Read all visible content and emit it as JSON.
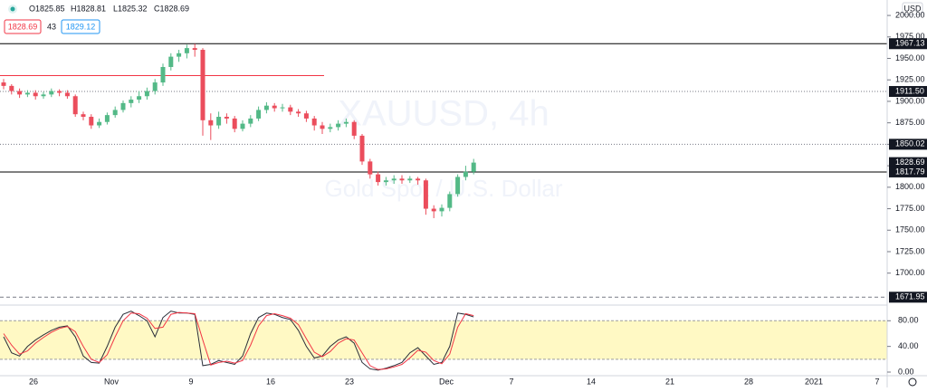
{
  "header": {
    "ohlc": [
      "O1825.85",
      "H1828.81",
      "L1825.32",
      "C1828.69"
    ],
    "sell": "1828.69",
    "spread": "43",
    "buy": "1829.12",
    "currency": "USD",
    "watermark": "XAUUSD, 4h",
    "watermark_sub": "Gold Spot / U.S. Dollar"
  },
  "chart_data": [
    {
      "type": "candlestick",
      "up_color": "#53b987",
      "down_color": "#eb4d5c",
      "open": [
        1922,
        1918,
        1912,
        1908,
        1910,
        1906,
        1908,
        1912,
        1910,
        1906,
        1885,
        1882,
        1872,
        1876,
        1884,
        1890,
        1898,
        1902,
        1906,
        1912,
        1922,
        1940,
        1952,
        1956,
        1962,
        1960,
        1878,
        1872,
        1882,
        1880,
        1868,
        1874,
        1880,
        1890,
        1895,
        1892,
        1893,
        1888,
        1886,
        1880,
        1872,
        1868,
        1870,
        1874,
        1876,
        1860,
        1830,
        1815,
        1806,
        1808,
        1810,
        1808,
        1810,
        1808,
        1775,
        1772,
        1776,
        1792,
        1812,
        1818
      ],
      "high": [
        1926,
        1920,
        1915,
        1913,
        1913,
        1911,
        1915,
        1914,
        1913,
        1908,
        1888,
        1885,
        1880,
        1887,
        1894,
        1901,
        1906,
        1912,
        1916,
        1926,
        1944,
        1956,
        1960,
        1966,
        1967,
        1962,
        1886,
        1888,
        1886,
        1883,
        1878,
        1884,
        1894,
        1899,
        1898,
        1897,
        1896,
        1891,
        1889,
        1883,
        1876,
        1874,
        1878,
        1880,
        1878,
        1862,
        1833,
        1818,
        1812,
        1814,
        1814,
        1813,
        1812,
        1810,
        1779,
        1780,
        1795,
        1815,
        1825,
        1833
      ],
      "low": [
        1914,
        1908,
        1904,
        1905,
        1902,
        1903,
        1905,
        1906,
        1903,
        1882,
        1878,
        1868,
        1869,
        1873,
        1881,
        1887,
        1893,
        1898,
        1902,
        1908,
        1918,
        1936,
        1946,
        1950,
        1952,
        1860,
        1855,
        1868,
        1874,
        1864,
        1865,
        1870,
        1877,
        1886,
        1888,
        1888,
        1884,
        1882,
        1876,
        1866,
        1862,
        1864,
        1866,
        1870,
        1856,
        1826,
        1810,
        1802,
        1802,
        1804,
        1804,
        1805,
        1803,
        1768,
        1764,
        1766,
        1772,
        1789,
        1808,
        1815
      ],
      "close": [
        1918,
        1912,
        1908,
        1910,
        1906,
        1908,
        1912,
        1910,
        1906,
        1885,
        1882,
        1872,
        1876,
        1884,
        1890,
        1898,
        1902,
        1906,
        1912,
        1922,
        1940,
        1952,
        1956,
        1962,
        1960,
        1878,
        1872,
        1882,
        1880,
        1868,
        1874,
        1880,
        1890,
        1895,
        1892,
        1893,
        1888,
        1886,
        1880,
        1872,
        1868,
        1870,
        1874,
        1876,
        1860,
        1830,
        1815,
        1806,
        1808,
        1810,
        1808,
        1810,
        1808,
        1775,
        1772,
        1776,
        1792,
        1812,
        1818,
        1828.69
      ],
      "ylim": [
        1667,
        2018
      ],
      "yticks": [
        {
          "value": 2000,
          "label": "2000.00"
        },
        {
          "value": 1975,
          "label": "1975.00"
        },
        {
          "value": 1950,
          "label": "1950.00"
        },
        {
          "value": 1925,
          "label": "1925.00"
        },
        {
          "value": 1900,
          "label": "1900.00"
        },
        {
          "value": 1875,
          "label": "1875.00"
        },
        {
          "value": 1850,
          "label": "1850.00"
        },
        {
          "value": 1825,
          "label": "1825.00"
        },
        {
          "value": 1800,
          "label": "1800.00"
        },
        {
          "value": 1775,
          "label": "1775.00"
        },
        {
          "value": 1750,
          "label": "1750.00"
        },
        {
          "value": 1725,
          "label": "1725.00"
        },
        {
          "value": 1700,
          "label": "1700.00"
        }
      ],
      "levels": [
        {
          "value": 1967.13,
          "label": "1967.13",
          "style": "solid"
        },
        {
          "value": 1911.5,
          "label": "1911.50",
          "style": "dotted"
        },
        {
          "value": 1850.02,
          "label": "1850.02",
          "style": "dotted"
        },
        {
          "value": 1828.69,
          "label": "1828.69",
          "style": "none"
        },
        {
          "value": 1817.79,
          "label": "1817.79",
          "style": "solid"
        },
        {
          "value": 1671.95,
          "label": "1671.95",
          "style": "dashed"
        }
      ],
      "trend_line": {
        "value": 1930,
        "color": "#f23645"
      }
    },
    {
      "type": "line",
      "band": [
        20,
        80
      ],
      "band_color": "#fff9c4",
      "series": [
        {
          "color": "#2a2e39",
          "values": [
            55,
            30,
            25,
            40,
            50,
            58,
            65,
            70,
            72,
            55,
            25,
            15,
            14,
            40,
            70,
            90,
            95,
            88,
            80,
            55,
            85,
            95,
            92,
            92,
            90,
            10,
            12,
            18,
            15,
            12,
            25,
            60,
            85,
            92,
            90,
            85,
            82,
            65,
            40,
            22,
            25,
            40,
            50,
            55,
            45,
            15,
            5,
            3,
            6,
            10,
            15,
            30,
            38,
            25,
            12,
            15,
            40,
            92,
            90,
            86
          ]
        },
        {
          "color": "#f23645",
          "values": [
            60,
            42,
            28,
            33,
            45,
            54,
            62,
            68,
            71,
            63,
            40,
            20,
            15,
            27,
            55,
            80,
            92,
            91,
            84,
            68,
            70,
            90,
            93,
            92,
            91,
            50,
            11,
            15,
            17,
            14,
            18,
            42,
            72,
            88,
            91,
            88,
            84,
            74,
            52,
            31,
            24,
            32,
            45,
            52,
            50,
            30,
            10,
            4,
            5,
            8,
            12,
            22,
            34,
            31,
            18,
            13,
            28,
            70,
            91,
            88
          ]
        }
      ],
      "ylim": [
        0,
        103
      ],
      "yticks": [
        {
          "value": 80,
          "label": "80.00"
        },
        {
          "value": 40,
          "label": "40.00"
        },
        {
          "value": 0,
          "label": "0.00"
        }
      ],
      "x_labels": [
        "26",
        "Nov",
        "9",
        "16",
        "23",
        "Dec",
        "7",
        "14",
        "21",
        "28",
        "2021",
        "7"
      ]
    }
  ]
}
